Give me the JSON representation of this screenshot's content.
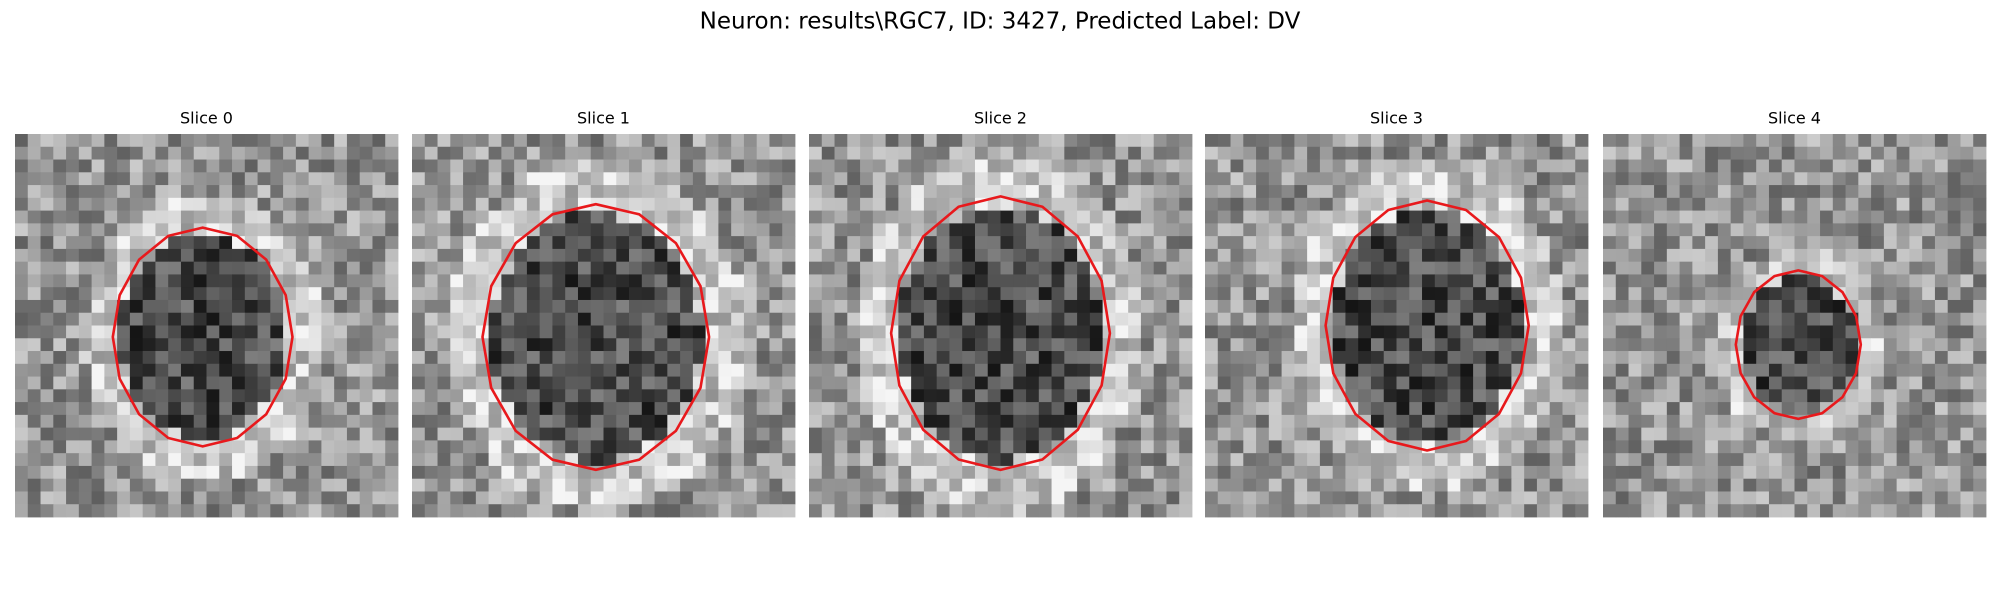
{
  "title": "Neuron: results\\RGC7, ID: 3427, Predicted Label: DV",
  "panels": [
    {
      "title": "Slice 0"
    },
    {
      "title": "Slice 1"
    },
    {
      "title": "Slice 2"
    },
    {
      "title": "Slice 3"
    },
    {
      "title": "Slice 4"
    }
  ]
}
